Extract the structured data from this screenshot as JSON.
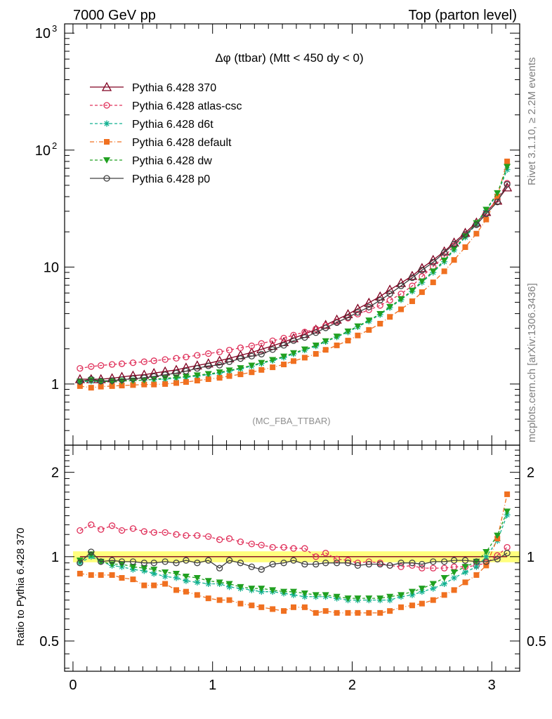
{
  "header": {
    "left": "7000 GeV pp",
    "right": "Top (parton level)"
  },
  "side_labels": {
    "rivet": "Rivet 3.1.10, ≥ 2.2M events",
    "mcplots": "mcplots.cern.ch [arXiv:1306.3436]"
  },
  "chart_data": [
    {
      "type": "line",
      "panel": "main",
      "title": "Δφ (ttbar) (Mtt < 450 dy < 0)",
      "watermark": "(MC_FBA_TTBAR)",
      "xlabel": "",
      "ylabel": "",
      "xlim": [
        -0.06,
        3.2
      ],
      "ylim": [
        0.3,
        1200
      ],
      "yscale": "log",
      "legend_placement": "top-left",
      "y_tick_labels": [
        {
          "value": 1000,
          "base": "10",
          "exp": "3"
        },
        {
          "value": 100,
          "base": "10",
          "exp": "2"
        },
        {
          "value": 10,
          "base": "10",
          "exp": ""
        },
        {
          "value": 1,
          "base": "1",
          "exp": ""
        }
      ],
      "x": [
        0.05,
        0.13,
        0.2,
        0.28,
        0.35,
        0.43,
        0.51,
        0.58,
        0.66,
        0.74,
        0.81,
        0.89,
        0.97,
        1.05,
        1.12,
        1.2,
        1.28,
        1.35,
        1.43,
        1.51,
        1.58,
        1.66,
        1.74,
        1.81,
        1.89,
        1.97,
        2.04,
        2.12,
        2.2,
        2.27,
        2.35,
        2.43,
        2.5,
        2.58,
        2.66,
        2.73,
        2.81,
        2.89,
        2.96,
        3.04,
        3.11
      ],
      "series": [
        {
          "name": "Pythia 6.428 370",
          "color": "#800020",
          "marker": "triangle-open",
          "dash": "solid",
          "values": [
            1.1,
            1.1,
            1.1,
            1.12,
            1.15,
            1.18,
            1.2,
            1.24,
            1.28,
            1.32,
            1.38,
            1.44,
            1.5,
            1.58,
            1.66,
            1.76,
            1.86,
            1.98,
            2.12,
            2.28,
            2.46,
            2.68,
            2.92,
            3.2,
            3.55,
            3.95,
            4.4,
            4.95,
            5.6,
            6.4,
            7.3,
            8.4,
            9.8,
            11.5,
            13.6,
            16.2,
            19.6,
            24,
            29.6,
            37,
            48
          ]
        },
        {
          "name": "Pythia 6.428 atlas-csc",
          "color": "#e0305a",
          "marker": "circle-open",
          "dash": "4,3",
          "values": [
            1.36,
            1.41,
            1.44,
            1.47,
            1.49,
            1.52,
            1.55,
            1.58,
            1.62,
            1.66,
            1.7,
            1.76,
            1.82,
            1.88,
            1.95,
            2.04,
            2.12,
            2.22,
            2.34,
            2.47,
            2.62,
            2.78,
            2.96,
            3.16,
            3.4,
            3.66,
            3.96,
            4.3,
            4.7,
            5.2,
            5.9,
            6.9,
            8.3,
            10.1,
            12.3,
            15.2,
            18.8,
            23.3,
            29.3,
            38,
            52
          ]
        },
        {
          "name": "Pythia 6.428 d6t",
          "color": "#10b090",
          "marker": "star",
          "dash": "4,3",
          "values": [
            1.04,
            1.06,
            1.05,
            1.05,
            1.06,
            1.07,
            1.08,
            1.09,
            1.1,
            1.12,
            1.14,
            1.17,
            1.2,
            1.24,
            1.29,
            1.35,
            1.42,
            1.5,
            1.59,
            1.69,
            1.81,
            1.95,
            2.11,
            2.3,
            2.52,
            2.78,
            3.08,
            3.45,
            3.92,
            4.5,
            5.25,
            6.2,
            7.4,
            9,
            11.1,
            14,
            18,
            23.3,
            30.5,
            42,
            68
          ]
        },
        {
          "name": "Pythia 6.428 default",
          "color": "#f07020",
          "marker": "square",
          "dash": "6,3,1,3",
          "values": [
            0.96,
            0.93,
            0.95,
            0.96,
            0.97,
            0.98,
            0.99,
            0.99,
            1.0,
            1.02,
            1.04,
            1.07,
            1.1,
            1.13,
            1.17,
            1.21,
            1.26,
            1.32,
            1.39,
            1.47,
            1.57,
            1.68,
            1.81,
            1.96,
            2.14,
            2.35,
            2.6,
            2.9,
            3.28,
            3.75,
            4.35,
            5.1,
            6.1,
            7.4,
            9.2,
            11.5,
            14.8,
            19.3,
            25.5,
            40,
            80
          ]
        },
        {
          "name": "Pythia 6.428 dw",
          "color": "#20a020",
          "marker": "triangle-down",
          "dash": "4,3",
          "values": [
            1.05,
            1.08,
            1.05,
            1.05,
            1.06,
            1.07,
            1.08,
            1.1,
            1.12,
            1.14,
            1.16,
            1.19,
            1.22,
            1.26,
            1.31,
            1.37,
            1.44,
            1.52,
            1.61,
            1.72,
            1.84,
            1.98,
            2.14,
            2.33,
            2.55,
            2.82,
            3.12,
            3.5,
            3.98,
            4.58,
            5.33,
            6.3,
            7.55,
            9.2,
            11.4,
            14.3,
            18.4,
            23.8,
            31,
            43,
            72
          ]
        },
        {
          "name": "Pythia 6.428 p0",
          "color": "#404040",
          "marker": "circle-open",
          "dash": "solid",
          "values": [
            1.05,
            1.1,
            1.06,
            1.07,
            1.09,
            1.11,
            1.13,
            1.16,
            1.2,
            1.24,
            1.29,
            1.36,
            1.43,
            1.45,
            1.55,
            1.65,
            1.73,
            1.8,
            1.97,
            2.14,
            2.35,
            2.5,
            2.75,
            3.02,
            3.35,
            3.72,
            4.1,
            4.55,
            5.2,
            5.9,
            6.9,
            8.1,
            9.4,
            11,
            13.3,
            15.7,
            19,
            23,
            28.5,
            36,
            51
          ]
        }
      ]
    },
    {
      "type": "line",
      "panel": "ratio",
      "xlabel": "",
      "ylabel": "Ratio to Pythia 6.428 370",
      "xlim": [
        -0.06,
        3.2
      ],
      "ylim": [
        0.39,
        2.5
      ],
      "yscale": "log",
      "y_tick_labels": [
        {
          "value": 2,
          "label": "2"
        },
        {
          "value": 1,
          "label": "1"
        },
        {
          "value": 0.5,
          "label": "0.5"
        }
      ],
      "x_tick_labels": [
        {
          "value": 0,
          "label": "0"
        },
        {
          "value": 1,
          "label": "1"
        },
        {
          "value": 2,
          "label": "2"
        },
        {
          "value": 3,
          "label": "3"
        }
      ],
      "reference_band": [
        0.955,
        1.045
      ],
      "x": [
        0.05,
        0.13,
        0.2,
        0.28,
        0.35,
        0.43,
        0.51,
        0.58,
        0.66,
        0.74,
        0.81,
        0.89,
        0.97,
        1.05,
        1.12,
        1.2,
        1.28,
        1.35,
        1.43,
        1.51,
        1.58,
        1.66,
        1.74,
        1.81,
        1.89,
        1.97,
        2.04,
        2.12,
        2.2,
        2.27,
        2.35,
        2.43,
        2.5,
        2.58,
        2.66,
        2.73,
        2.81,
        2.89,
        2.96,
        3.04,
        3.11
      ],
      "series": [
        {
          "name": "Pythia 6.428 370",
          "color": "#800020",
          "dash": "solid",
          "marker": "none",
          "values": [
            1,
            1,
            1,
            1,
            1,
            1,
            1,
            1,
            1,
            1,
            1,
            1,
            1,
            1,
            1,
            1,
            1,
            1,
            1,
            1,
            1,
            1,
            1,
            1,
            1,
            1,
            1,
            1,
            1,
            1,
            1,
            1,
            1,
            1,
            1,
            1,
            1,
            1,
            1,
            1,
            1
          ]
        },
        {
          "name": "Pythia 6.428 atlas-csc",
          "color": "#e0305a",
          "marker": "circle-open",
          "dash": "4,3",
          "values": [
            1.24,
            1.3,
            1.25,
            1.29,
            1.24,
            1.26,
            1.23,
            1.22,
            1.22,
            1.2,
            1.19,
            1.19,
            1.18,
            1.15,
            1.16,
            1.13,
            1.11,
            1.1,
            1.08,
            1.08,
            1.07,
            1.07,
            1.0,
            1.03,
            0.98,
            0.97,
            0.95,
            0.96,
            0.95,
            0.93,
            0.92,
            0.93,
            0.91,
            0.91,
            0.91,
            0.92,
            0.92,
            0.93,
            0.95,
            1.01,
            1.08
          ]
        },
        {
          "name": "Pythia 6.428 d6t",
          "color": "#10b090",
          "marker": "star",
          "dash": "4,3",
          "values": [
            0.95,
            1.0,
            0.96,
            0.93,
            0.92,
            0.9,
            0.89,
            0.87,
            0.85,
            0.84,
            0.82,
            0.81,
            0.8,
            0.8,
            0.78,
            0.77,
            0.76,
            0.75,
            0.75,
            0.74,
            0.73,
            0.72,
            0.72,
            0.72,
            0.71,
            0.7,
            0.7,
            0.7,
            0.7,
            0.7,
            0.72,
            0.73,
            0.75,
            0.77,
            0.8,
            0.84,
            0.88,
            0.92,
            1.0,
            1.14,
            1.41
          ]
        },
        {
          "name": "Pythia 6.428 default",
          "color": "#f07020",
          "marker": "square",
          "dash": "6,3,1,3",
          "values": [
            0.87,
            0.86,
            0.86,
            0.86,
            0.84,
            0.83,
            0.79,
            0.79,
            0.8,
            0.76,
            0.75,
            0.73,
            0.71,
            0.7,
            0.7,
            0.68,
            0.67,
            0.66,
            0.65,
            0.64,
            0.66,
            0.66,
            0.63,
            0.64,
            0.63,
            0.63,
            0.63,
            0.63,
            0.63,
            0.64,
            0.66,
            0.67,
            0.68,
            0.7,
            0.73,
            0.76,
            0.81,
            0.86,
            0.93,
            1.16,
            1.67
          ]
        },
        {
          "name": "Pythia 6.428 dw",
          "color": "#20a020",
          "marker": "triangle-down",
          "dash": "4,3",
          "values": [
            0.97,
            1.02,
            0.96,
            0.94,
            0.94,
            0.92,
            0.91,
            0.9,
            0.88,
            0.87,
            0.85,
            0.84,
            0.82,
            0.81,
            0.8,
            0.78,
            0.77,
            0.77,
            0.76,
            0.75,
            0.75,
            0.74,
            0.73,
            0.73,
            0.72,
            0.71,
            0.71,
            0.71,
            0.71,
            0.72,
            0.73,
            0.75,
            0.77,
            0.8,
            0.84,
            0.88,
            0.92,
            0.96,
            1.04,
            1.19,
            1.45
          ]
        },
        {
          "name": "Pythia 6.428 p0",
          "color": "#404040",
          "marker": "circle-open",
          "dash": "solid",
          "values": [
            0.95,
            1.04,
            0.96,
            0.97,
            0.96,
            0.96,
            0.95,
            0.95,
            0.96,
            0.95,
            0.97,
            0.95,
            0.97,
            0.91,
            0.97,
            0.95,
            0.92,
            0.9,
            0.94,
            0.95,
            0.97,
            0.94,
            0.94,
            0.95,
            0.95,
            0.95,
            0.93,
            0.94,
            0.94,
            0.93,
            0.95,
            0.95,
            0.94,
            0.96,
            0.96,
            0.97,
            0.97,
            0.96,
            0.96,
            0.98,
            1.03
          ]
        }
      ]
    }
  ]
}
